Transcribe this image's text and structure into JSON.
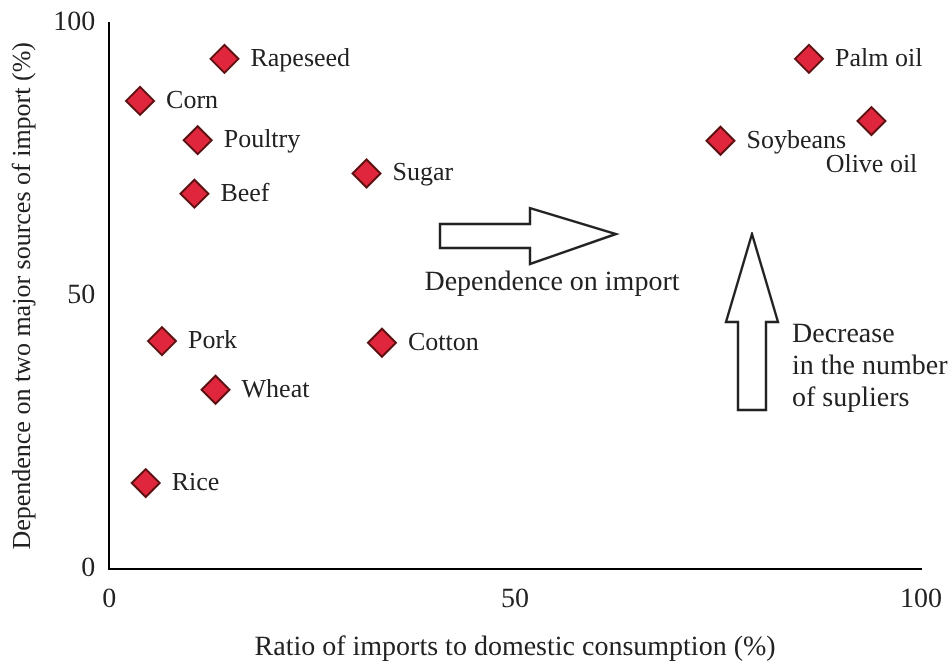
{
  "chart_data": {
    "type": "scatter",
    "xlabel": "Ratio of imports to domestic consumption (%)",
    "ylabel": "Dependence on two major sources of import (%)",
    "xlim": [
      0,
      100
    ],
    "xticks": [
      0,
      50,
      100
    ],
    "ylim": [
      0,
      100
    ],
    "yticks": [
      0,
      50,
      100
    ],
    "grid": false,
    "legend": false,
    "marker": "diamond",
    "annotations": [
      "Dependence on import",
      "Decrease\nin the number\nof supliers"
    ],
    "series": [
      {
        "color": "#e0263c",
        "x": [
          14.2,
          3.8,
          10.9,
          10.5,
          31.7,
          6.5,
          33.6,
          13.1,
          4.5,
          86.2,
          75.3,
          93.9
        ],
        "values": [
          93.4,
          85.7,
          78.5,
          68.7,
          72.4,
          41.7,
          41.4,
          32.8,
          15.7,
          93.4,
          78.4,
          82.0
        ],
        "value_labels": [
          "Rapeseed",
          "Corn",
          "Poultry",
          "Beef",
          "Sugar",
          "Pork",
          "Cotton",
          "Wheat",
          "Rice",
          "Palm oil",
          "Soybeans",
          "Olive oil"
        ]
      }
    ]
  }
}
